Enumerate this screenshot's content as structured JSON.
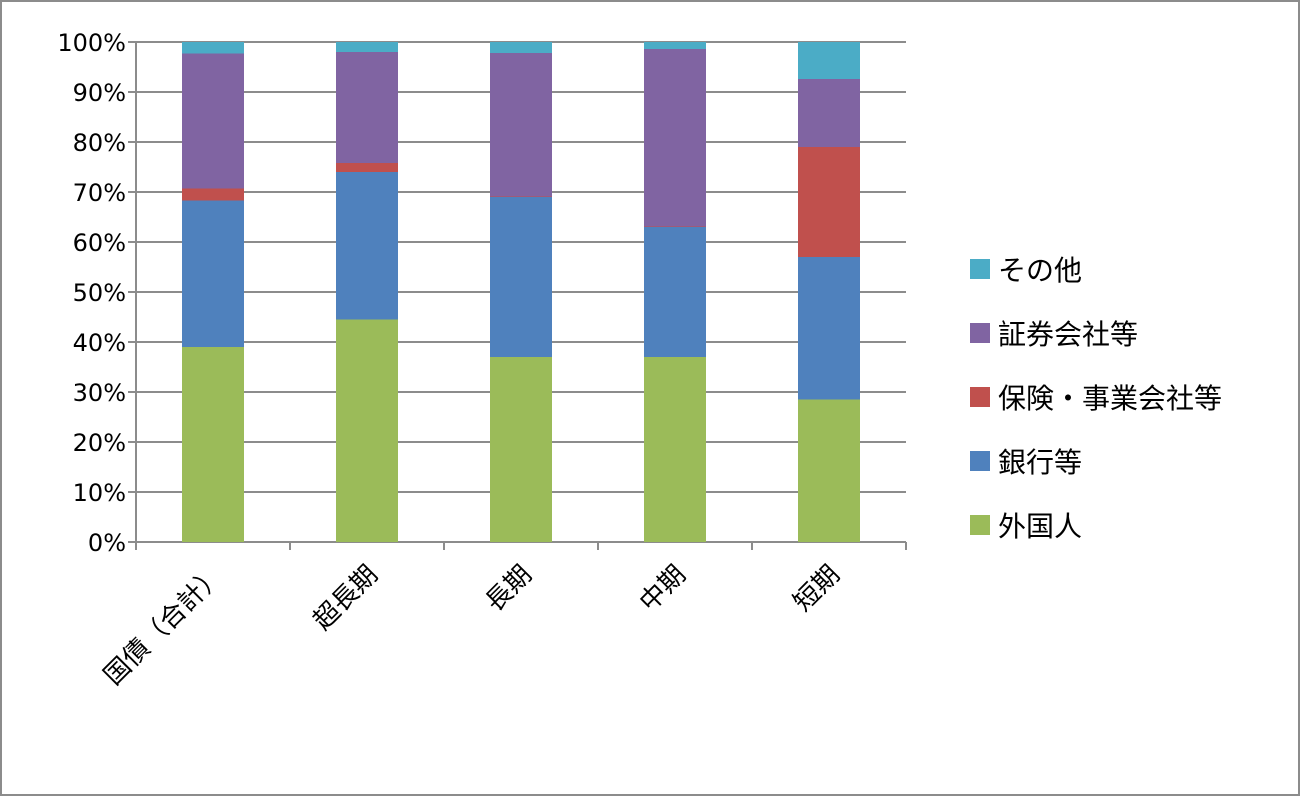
{
  "chart_data": {
    "type": "bar",
    "stacked": true,
    "percent": true,
    "categories": [
      "国債（合計）",
      "超長期",
      "長期",
      "中期",
      "短期"
    ],
    "series": [
      {
        "name": "外国人",
        "color": "#9BBB59",
        "values": [
          39,
          44.5,
          37,
          37,
          28.5
        ]
      },
      {
        "name": "銀行等",
        "color": "#4F81BD",
        "values": [
          29.3,
          29.5,
          32,
          26,
          28.5
        ]
      },
      {
        "name": "保険・事業会社等",
        "color": "#C0504D",
        "values": [
          2.4,
          1.8,
          0.1,
          0.1,
          22
        ]
      },
      {
        "name": "証券会社等",
        "color": "#8064A2",
        "values": [
          27,
          22.2,
          28.7,
          35.5,
          13.6
        ]
      },
      {
        "name": "その他",
        "color": "#4BACC6",
        "values": [
          2.3,
          2,
          2.2,
          1.4,
          7.4
        ]
      }
    ],
    "yticks": [
      "0%",
      "10%",
      "20%",
      "30%",
      "40%",
      "50%",
      "60%",
      "70%",
      "80%",
      "90%",
      "100%"
    ],
    "ylim": [
      0,
      100
    ],
    "grid": true,
    "legend_position": "right"
  }
}
